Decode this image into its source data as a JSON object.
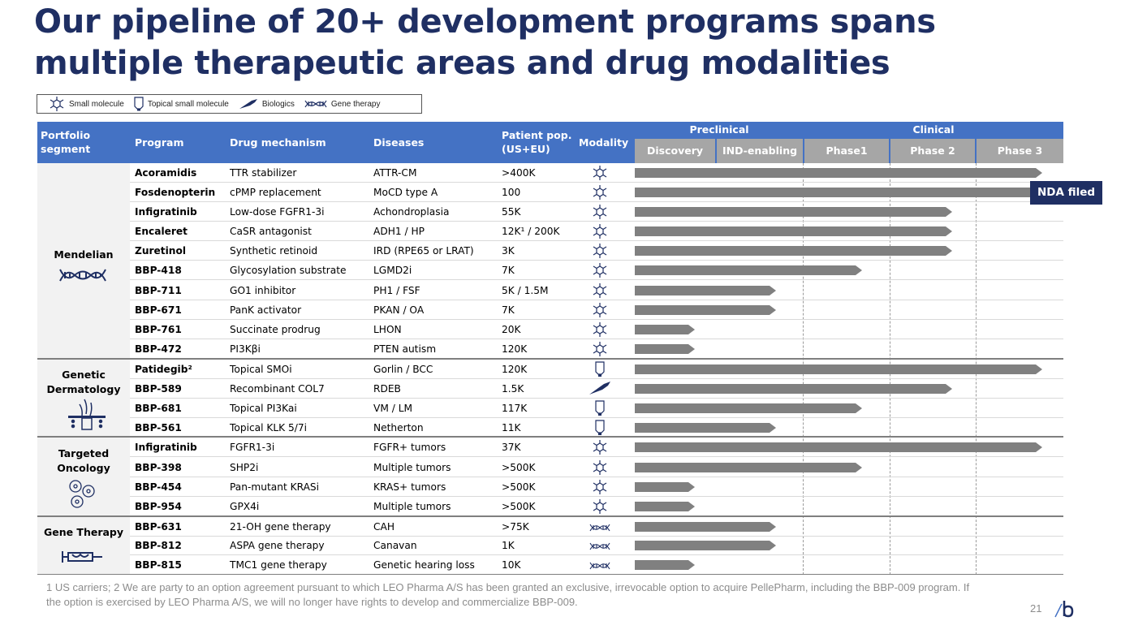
{
  "title": "Our pipeline of 20+ development programs spans multiple therapeutic areas and drug modalities",
  "legend": {
    "small_molecule": "Small molecule",
    "topical": "Topical small molecule",
    "biologics": "Biologics",
    "gene_therapy": "Gene therapy"
  },
  "header": {
    "segment": "Portfolio segment",
    "program": "Program",
    "mechanism": "Drug  mechanism",
    "diseases": "Diseases",
    "patient_pop": "Patient pop. (US+EU)",
    "modality": "Modality",
    "preclinical": "Preclinical",
    "clinical": "Clinical",
    "phases": [
      "Discovery",
      "IND-enabling",
      "Phase1",
      "Phase 2",
      "Phase 3"
    ]
  },
  "segments": [
    {
      "name": "Mendelian",
      "icon": "dna-icon"
    },
    {
      "name": "Genetic Dermatology",
      "icon": "hair-follicle-icon"
    },
    {
      "name": "Targeted Oncology",
      "icon": "tumor-cells-icon"
    },
    {
      "name": "Gene Therapy",
      "icon": "syringe-icon"
    }
  ],
  "rows": [
    {
      "program": "Acoramidis",
      "mechanism": "TTR stabilizer",
      "disease": "ATTR-CM",
      "pop": ">400K",
      "modality": "small-molecule",
      "progress": 0.95
    },
    {
      "program": "Fosdenopterin",
      "mechanism": "cPMP replacement",
      "disease": "MoCD type A",
      "pop": "100",
      "modality": "small-molecule",
      "progress": 0.95
    },
    {
      "program": "Infigratinib",
      "mechanism": "Low-dose FGFR1-3i",
      "disease": "Achondroplasia",
      "pop": "55K",
      "modality": "small-molecule",
      "progress": 0.74
    },
    {
      "program": "Encaleret",
      "mechanism": "CaSR antagonist",
      "disease": "ADH1 / HP",
      "pop": "12K¹ / 200K",
      "modality": "small-molecule",
      "progress": 0.74
    },
    {
      "program": "Zuretinol",
      "mechanism": "Synthetic retinoid",
      "disease": "IRD (RPE65 or LRAT)",
      "pop": "3K",
      "modality": "small-molecule",
      "progress": 0.74
    },
    {
      "program": "BBP-418",
      "mechanism": "Glycosylation substrate",
      "disease": "LGMD2i",
      "pop": "7K",
      "modality": "small-molecule",
      "progress": 0.53
    },
    {
      "program": "BBP-711",
      "mechanism": "GO1 inhibitor",
      "disease": "PH1 / FSF",
      "pop": "5K / 1.5M",
      "modality": "small-molecule",
      "progress": 0.33
    },
    {
      "program": "BBP-671",
      "mechanism": "PanK activator",
      "disease": "PKAN / OA",
      "pop": "7K",
      "modality": "small-molecule",
      "progress": 0.33
    },
    {
      "program": "BBP-761",
      "mechanism": "Succinate prodrug",
      "disease": "LHON",
      "pop": "20K",
      "modality": "small-molecule",
      "progress": 0.14
    },
    {
      "program": "BBP-472",
      "mechanism": "PI3Kβi",
      "disease": "PTEN autism",
      "pop": "120K",
      "modality": "small-molecule",
      "progress": 0.14
    },
    {
      "program": "Patidegib²",
      "mechanism": "Topical SMOi",
      "disease": "Gorlin / BCC",
      "pop": "120K",
      "modality": "topical",
      "progress": 0.95
    },
    {
      "program": "BBP-589",
      "mechanism": "Recombinant COL7",
      "disease": "RDEB",
      "pop": "1.5K",
      "modality": "biologics",
      "progress": 0.74
    },
    {
      "program": "BBP-681",
      "mechanism": "Topical PI3Kai",
      "disease": "VM / LM",
      "pop": "117K",
      "modality": "topical",
      "progress": 0.53
    },
    {
      "program": "BBP-561",
      "mechanism": "Topical KLK 5/7i",
      "disease": "Netherton",
      "pop": "11K",
      "modality": "topical",
      "progress": 0.33
    },
    {
      "program": "Infigratinib",
      "mechanism": "FGFR1-3i",
      "disease": "FGFR+ tumors",
      "pop": "37K",
      "modality": "small-molecule",
      "progress": 0.95
    },
    {
      "program": "BBP-398",
      "mechanism": "SHP2i",
      "disease": "Multiple tumors",
      "pop": ">500K",
      "modality": "small-molecule",
      "progress": 0.53
    },
    {
      "program": "BBP-454",
      "mechanism": "Pan-mutant KRASi",
      "disease": "KRAS+ tumors",
      "pop": ">500K",
      "modality": "small-molecule",
      "progress": 0.14
    },
    {
      "program": "BBP-954",
      "mechanism": "GPX4i",
      "disease": "Multiple tumors",
      "pop": ">500K",
      "modality": "small-molecule",
      "progress": 0.14
    },
    {
      "program": "BBP-631",
      "mechanism": "21-OH gene therapy",
      "disease": "CAH",
      "pop": ">75K",
      "modality": "gene-therapy",
      "progress": 0.33
    },
    {
      "program": "BBP-812",
      "mechanism": "ASPA gene therapy",
      "disease": "Canavan",
      "pop": "1K",
      "modality": "gene-therapy",
      "progress": 0.33
    },
    {
      "program": "BBP-815",
      "mechanism": "TMC1 gene therapy",
      "disease": "Genetic hearing loss",
      "pop": "10K",
      "modality": "gene-therapy",
      "progress": 0.14
    }
  ],
  "nda_label": "NDA filed",
  "footnote": "1 US carriers; 2 We are party to an option agreement pursuant to which LEO Pharma A/S has been granted an exclusive, irrevocable option to acquire PellePharm, including the BBP-009 program. If the option is exercised by LEO Pharma A/S, we will no longer have rights to develop and commercialize BBP-009.",
  "page_number": "21",
  "colors": {
    "title": "#1f2f63",
    "header": "#4472c4",
    "phase": "#a6a6a6",
    "bar": "#808080",
    "nda": "#1f2f63"
  }
}
